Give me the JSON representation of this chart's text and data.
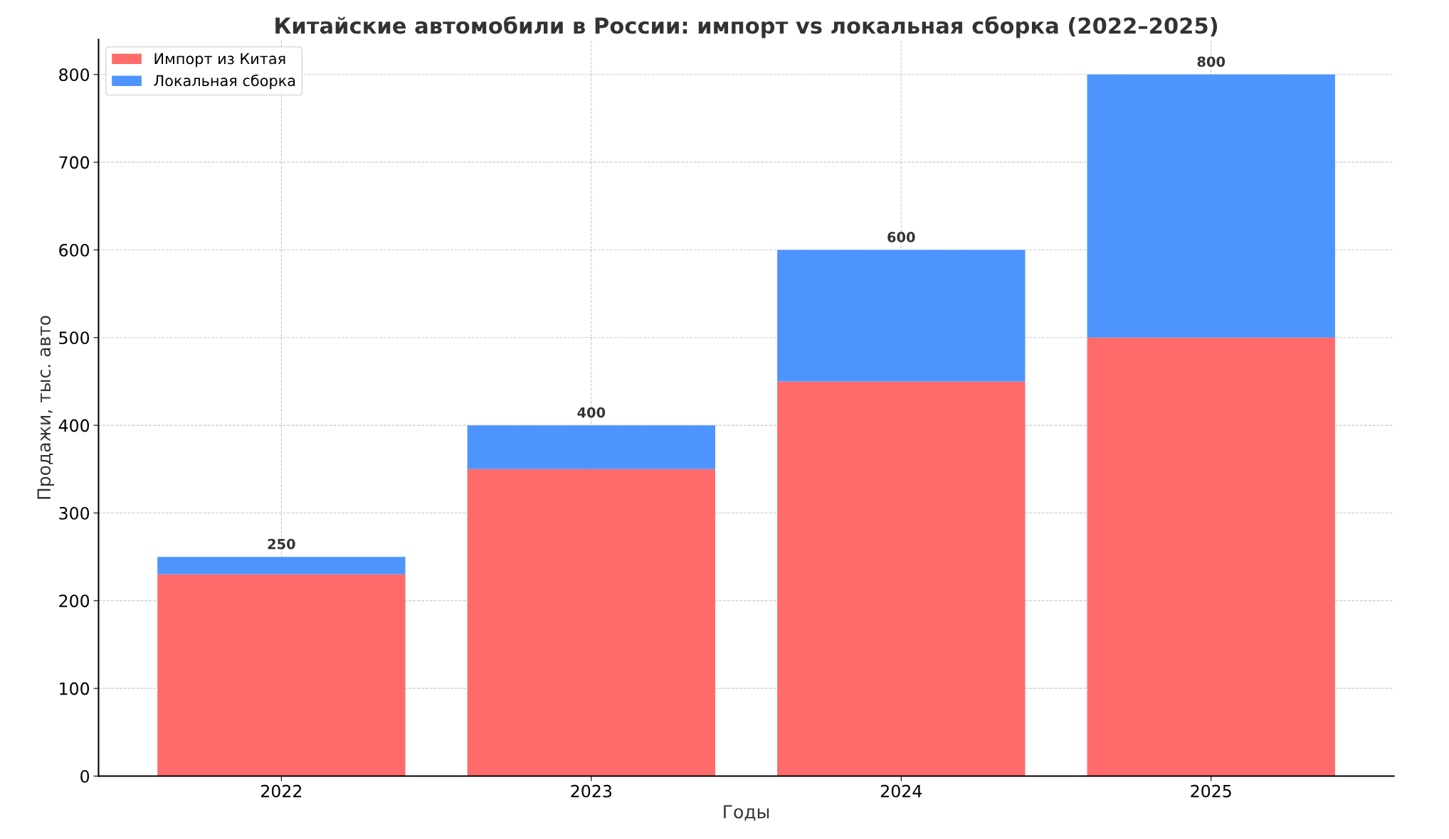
{
  "chart_data": {
    "type": "bar",
    "title": "Китайские автомобили в России: импорт vs локальная сборка (2022–2025)",
    "xlabel": "Годы",
    "ylabel": "Продажи, тыс. авто",
    "categories": [
      "2022",
      "2023",
      "2024",
      "2025"
    ],
    "stacked": true,
    "series": [
      {
        "name": "Импорт из Китая",
        "color": "#ff6b6b",
        "values": [
          230,
          350,
          450,
          500
        ]
      },
      {
        "name": "Локальная сборка",
        "color": "#4d94ff",
        "values": [
          20,
          50,
          150,
          300
        ]
      }
    ],
    "totals": [
      "250",
      "400",
      "600",
      "800"
    ],
    "ylim": [
      0,
      840
    ],
    "yticks": [
      0,
      100,
      200,
      300,
      400,
      500,
      600,
      700,
      800
    ],
    "grid": true,
    "line_style": "dashed",
    "legend": "top left"
  }
}
